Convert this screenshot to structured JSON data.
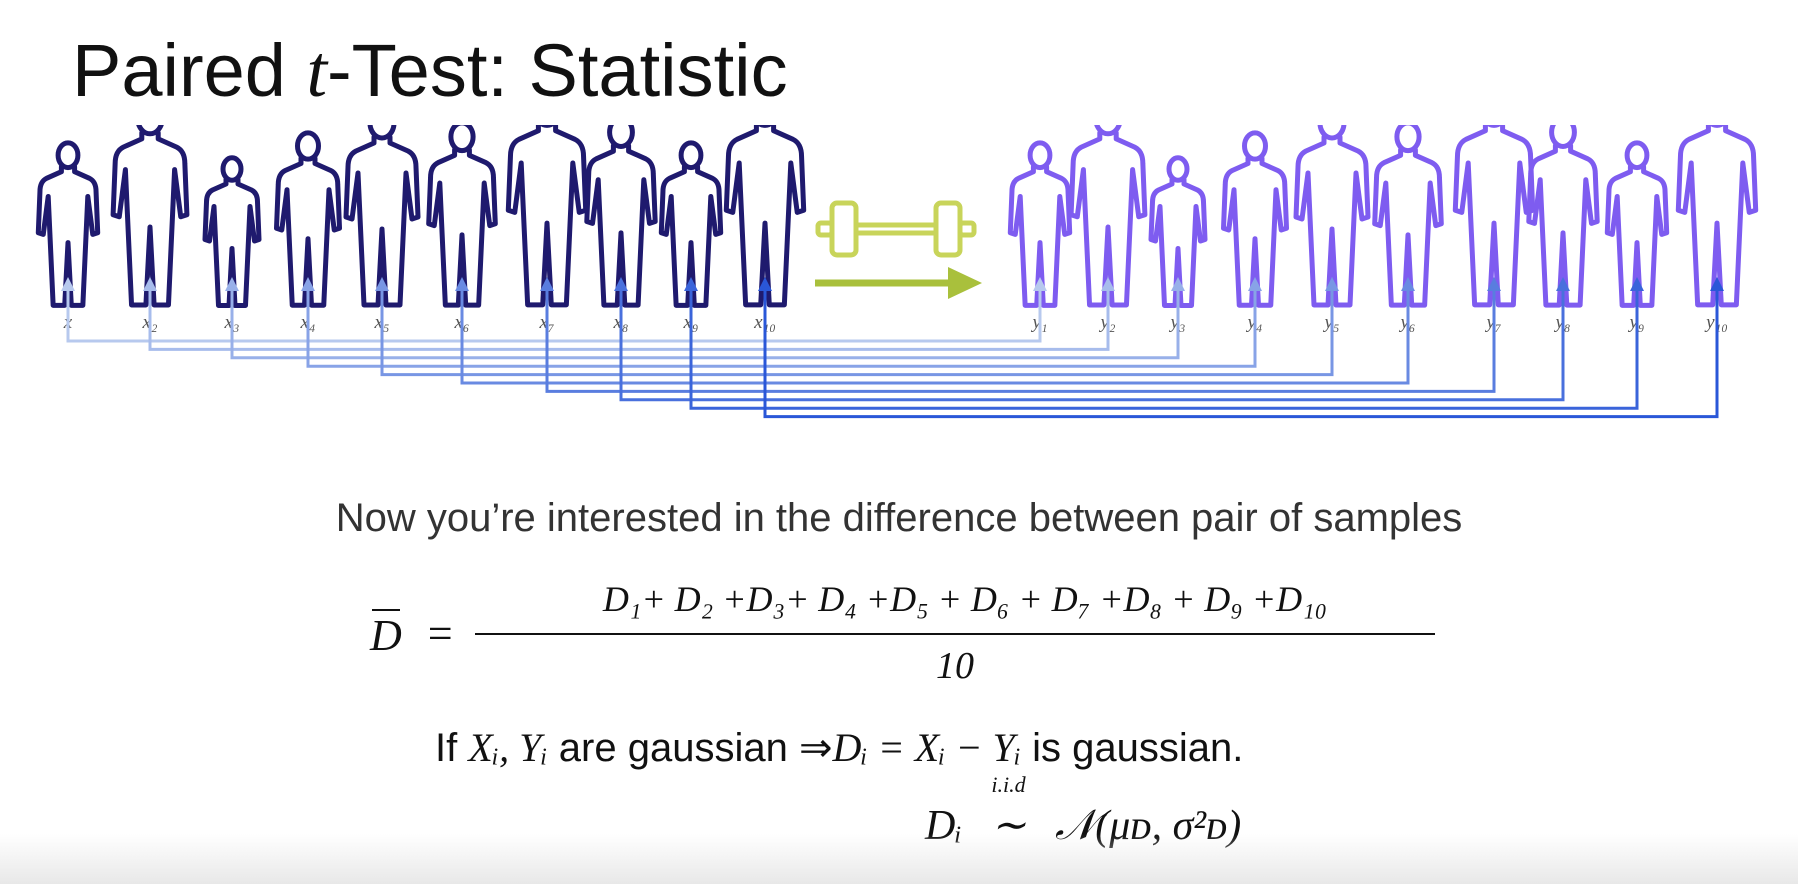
{
  "title": {
    "prefix": "Paired ",
    "var": "t",
    "suffix": "-Test: Statistic"
  },
  "groups": {
    "before_labels": [
      "x",
      "x₂",
      "x₃",
      "x₄",
      "x₅",
      "x₆",
      "x₇",
      "x₈",
      "x₉",
      "x₁₀"
    ],
    "after_labels": [
      "y₁",
      "y₂",
      "y₃",
      "y₄",
      "y₅",
      "y₆",
      "y₇",
      "y₈",
      "y₉",
      "y₁₀"
    ],
    "people_count": 10,
    "icons": {
      "person": "person-silhouette-icon",
      "treatment": "dumbbell-icon",
      "transition": "right-arrow-icon"
    },
    "colors": {
      "before_outline": "#1f1a6e",
      "after_outline": "#7e5cf0",
      "dumbbell": "#c8d45a",
      "arrow": "#a9c03c",
      "connector_light": "#b7c9ee",
      "connector_dark": "#2a57d8"
    }
  },
  "subtitle": "Now you’re interested in the difference between pair of samples",
  "formula": {
    "lhs": "D",
    "numerator": "D₁+ D₂ +D₃+ D₄ +D₅ + D₆ + D₇ +D₈ + D₉ +D₁₀",
    "denominator": "10"
  },
  "line2": {
    "text1": "If ",
    "vars": "Xᵢ, Yᵢ",
    "text2": " are gaussian ⇒",
    "equation": "Dᵢ = Xᵢ − Yᵢ",
    "text3": " is gaussian."
  },
  "line3": {
    "lhs": "Dᵢ",
    "iid": "i.i.d",
    "tilde": "∼",
    "dist": "𝒩(μᴅ, σ²ᴅ)"
  }
}
